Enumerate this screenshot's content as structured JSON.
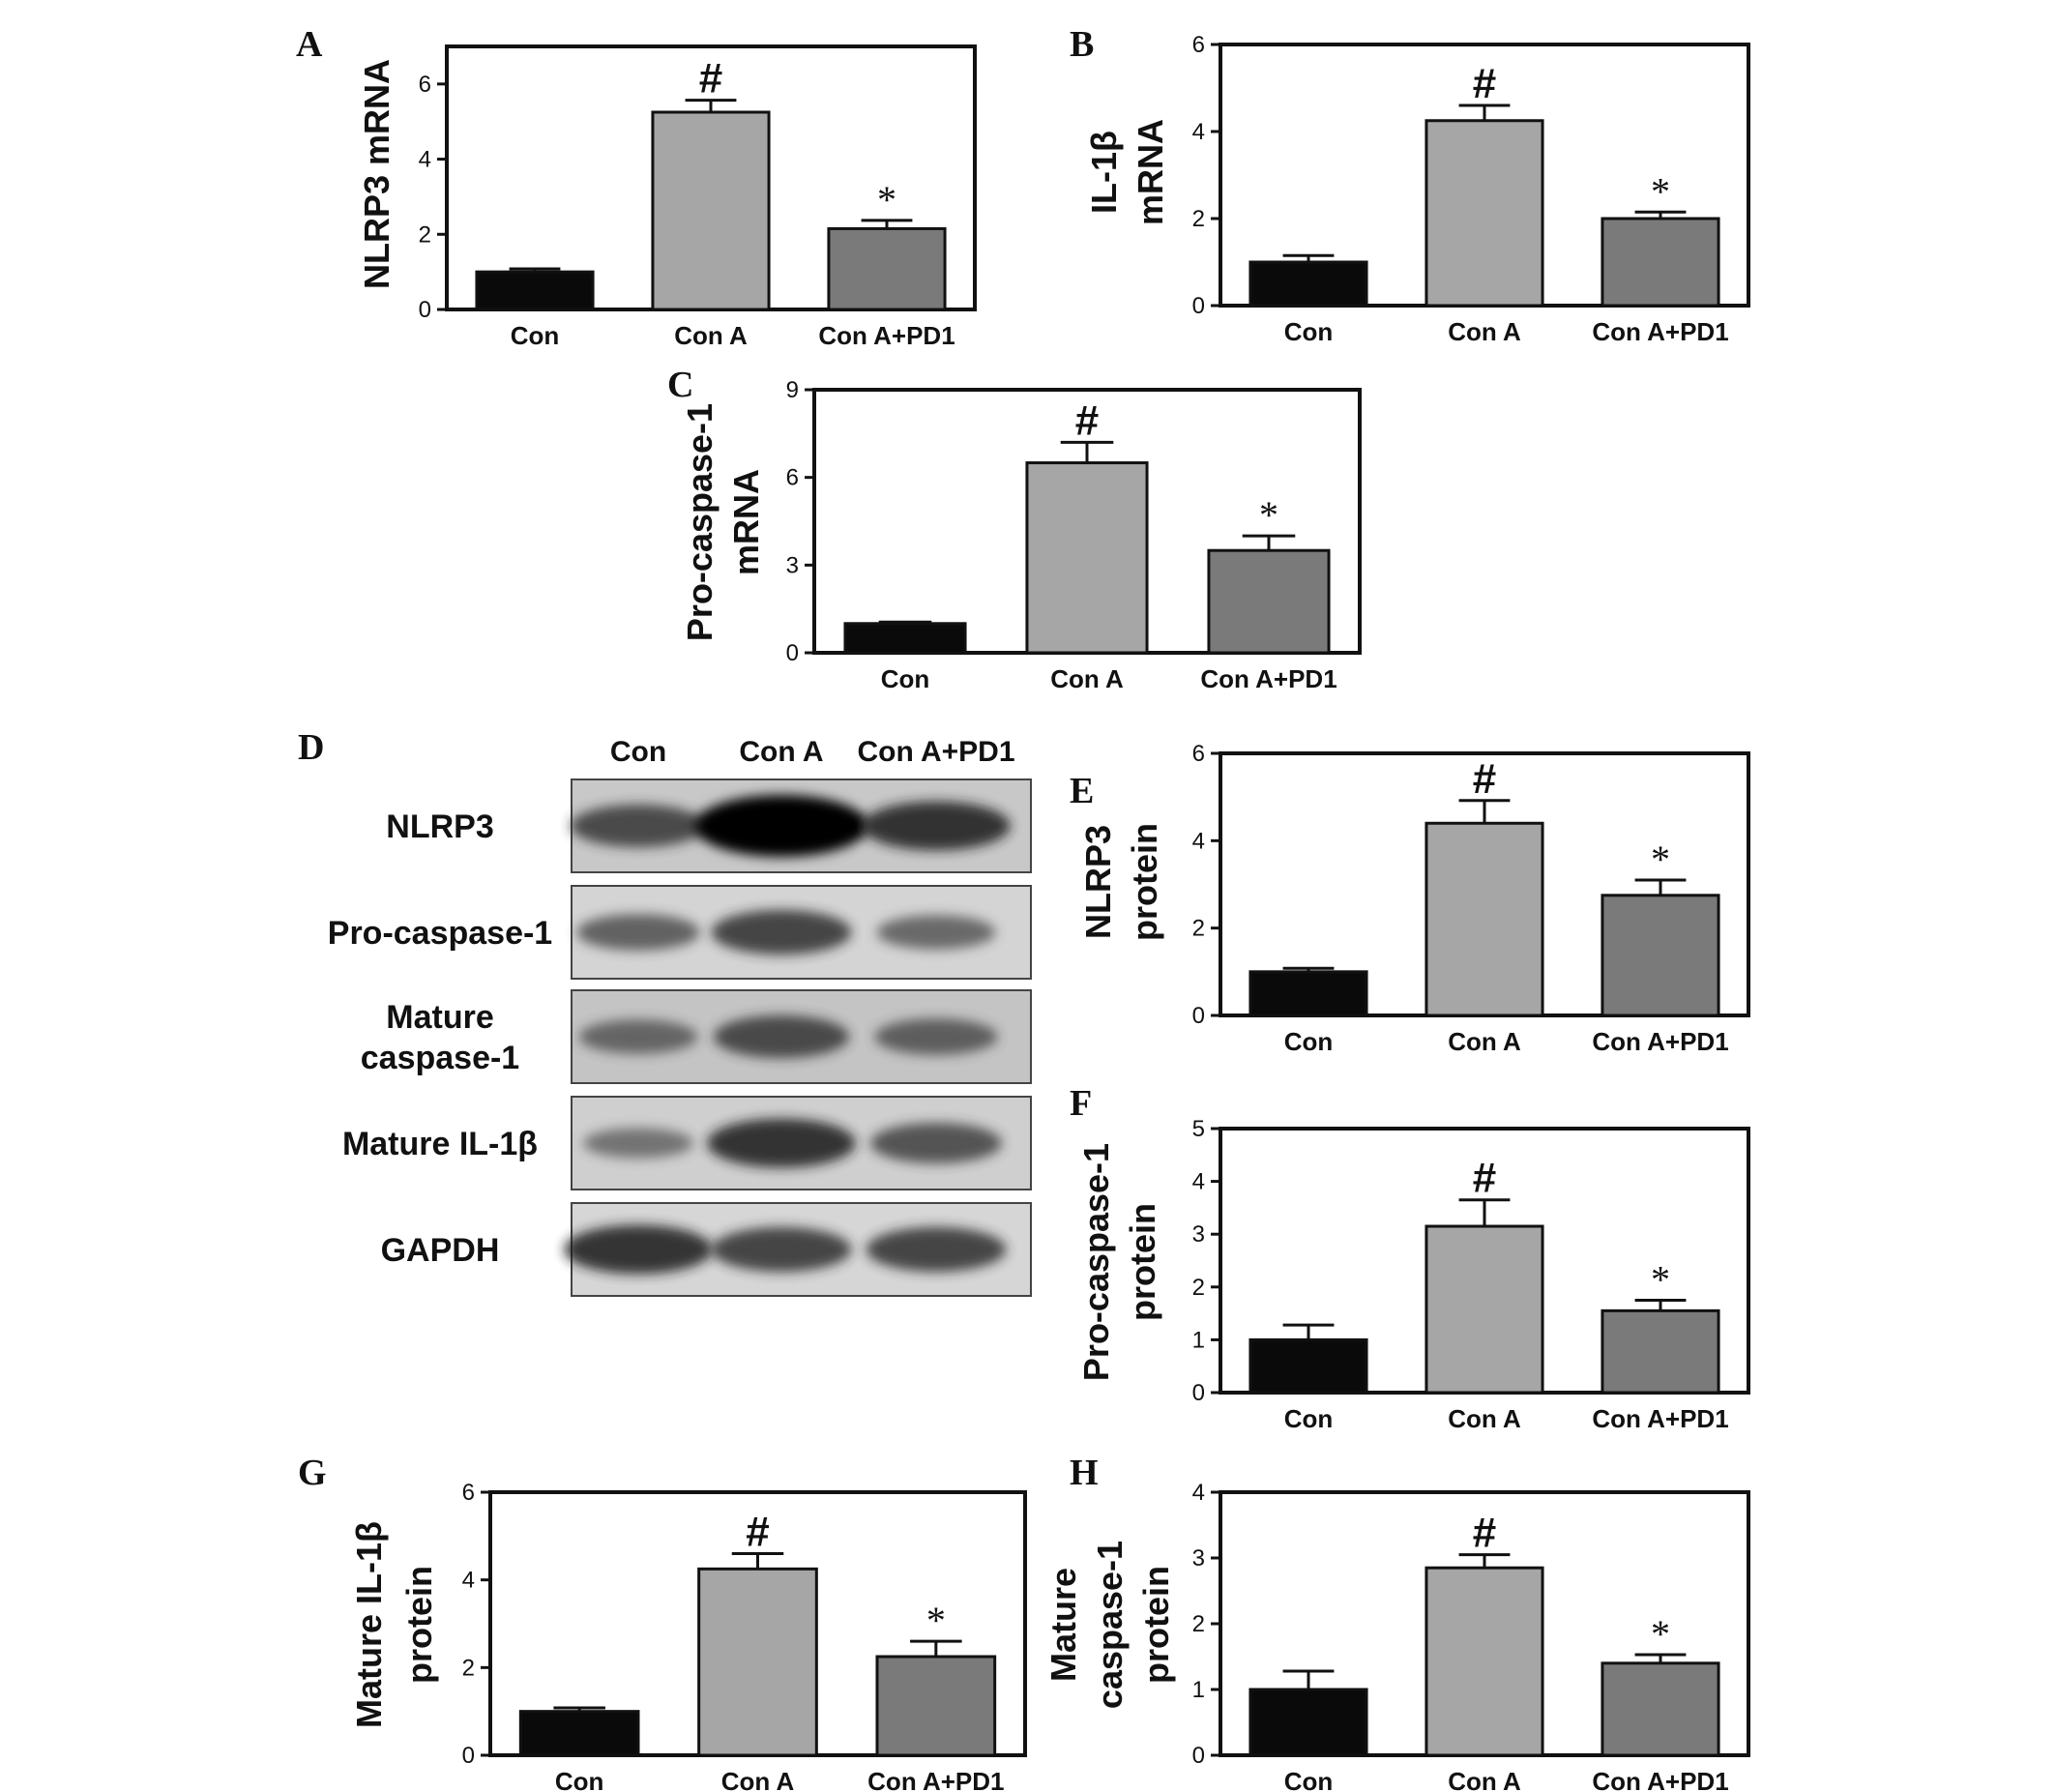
{
  "colors": {
    "con": "#0a0a0a",
    "conA": "#a6a6a6",
    "conAPD1": "#7a7a7a",
    "axis": "#111111"
  },
  "chart_data": [
    {
      "id": "A",
      "type": "bar",
      "panel_label": "A",
      "ylabel_lines": [
        "NLRP3 mRNA"
      ],
      "categories": [
        "Con",
        "Con A",
        "Con A+PD1"
      ],
      "values": [
        1.0,
        5.25,
        2.15
      ],
      "errors": [
        0.08,
        0.32,
        0.22
      ],
      "significance": [
        "",
        "#",
        "*"
      ],
      "ylim": [
        0,
        7
      ],
      "yticks": [
        0,
        2,
        4,
        6
      ],
      "ytick_labels": [
        "0",
        "2",
        "4",
        "6"
      ]
    },
    {
      "id": "B",
      "type": "bar",
      "panel_label": "B",
      "ylabel_lines": [
        "IL-1β",
        "mRNA"
      ],
      "categories": [
        "Con",
        "Con A",
        "Con A+PD1"
      ],
      "values": [
        1.0,
        4.25,
        2.0
      ],
      "errors": [
        0.15,
        0.35,
        0.15
      ],
      "significance": [
        "",
        "#",
        "*"
      ],
      "ylim": [
        0,
        6
      ],
      "yticks": [
        0,
        2,
        4,
        6
      ],
      "ytick_labels": [
        "0",
        "2",
        "4",
        "6"
      ]
    },
    {
      "id": "C",
      "type": "bar",
      "panel_label": "C",
      "ylabel_lines": [
        "Pro-caspase-1",
        "mRNA"
      ],
      "categories": [
        "Con",
        "Con A",
        "Con A+PD1"
      ],
      "values": [
        1.0,
        6.5,
        3.5
      ],
      "errors": [
        0.05,
        0.7,
        0.5
      ],
      "significance": [
        "",
        "#",
        "*"
      ],
      "ylim": [
        0,
        9
      ],
      "yticks": [
        0,
        3,
        6,
        9
      ],
      "ytick_labels": [
        "0",
        "3",
        "6",
        "9"
      ]
    },
    {
      "id": "E",
      "type": "bar",
      "panel_label": "E",
      "ylabel_lines": [
        "NLRP3",
        "protein"
      ],
      "categories": [
        "Con",
        "Con A",
        "Con A+PD1"
      ],
      "values": [
        1.0,
        4.4,
        2.75
      ],
      "errors": [
        0.08,
        0.52,
        0.35
      ],
      "significance": [
        "",
        "#",
        "*"
      ],
      "ylim": [
        0,
        6
      ],
      "yticks": [
        0,
        2,
        4,
        6
      ],
      "ytick_labels": [
        "0",
        "2",
        "4",
        "6"
      ]
    },
    {
      "id": "F",
      "type": "bar",
      "panel_label": "F",
      "ylabel_lines": [
        "Pro-caspase-1",
        "protein"
      ],
      "categories": [
        "Con",
        "Con A",
        "Con A+PD1"
      ],
      "values": [
        1.0,
        3.15,
        1.55
      ],
      "errors": [
        0.28,
        0.5,
        0.2
      ],
      "significance": [
        "",
        "#",
        "*"
      ],
      "ylim": [
        0,
        5
      ],
      "yticks": [
        0,
        1,
        2,
        3,
        4,
        5
      ],
      "ytick_labels": [
        "0",
        "1",
        "2",
        "3",
        "4",
        "5"
      ]
    },
    {
      "id": "G",
      "type": "bar",
      "panel_label": "G",
      "ylabel_lines": [
        "Mature IL-1β",
        "protein"
      ],
      "categories": [
        "Con",
        "Con A",
        "Con A+PD1"
      ],
      "values": [
        1.0,
        4.25,
        2.25
      ],
      "errors": [
        0.08,
        0.35,
        0.35
      ],
      "significance": [
        "",
        "#",
        "*"
      ],
      "ylim": [
        0,
        6
      ],
      "yticks": [
        0,
        2,
        4,
        6
      ],
      "ytick_labels": [
        "0",
        "2",
        "4",
        "6"
      ]
    },
    {
      "id": "H",
      "type": "bar",
      "panel_label": "H",
      "ylabel_lines": [
        "Mature",
        "caspase-1",
        "protein"
      ],
      "categories": [
        "Con",
        "Con A",
        "Con A+PD1"
      ],
      "values": [
        1.0,
        2.85,
        1.4
      ],
      "errors": [
        0.28,
        0.2,
        0.13
      ],
      "significance": [
        "",
        "#",
        "*"
      ],
      "ylim": [
        0,
        4
      ],
      "yticks": [
        0,
        1,
        2,
        3,
        4
      ],
      "ytick_labels": [
        "0",
        "1",
        "2",
        "3",
        "4"
      ]
    }
  ],
  "blot": {
    "panel_label": "D",
    "lanes": [
      "Con",
      "Con A",
      "Con A+PD1"
    ],
    "rows": [
      {
        "label_lines": [
          "NLRP3"
        ],
        "bg": "#c8c8c8",
        "intensities": [
          0.55,
          1.0,
          0.7
        ]
      },
      {
        "label_lines": [
          "Pro-caspase-1"
        ],
        "bg": "#d4d4d4",
        "intensities": [
          0.4,
          0.6,
          0.35
        ]
      },
      {
        "label_lines": [
          "Mature",
          "caspase-1"
        ],
        "bg": "#c4c4c4",
        "intensities": [
          0.35,
          0.55,
          0.4
        ]
      },
      {
        "label_lines": [
          "Mature IL-1β"
        ],
        "bg": "#cfcfcf",
        "intensities": [
          0.25,
          0.7,
          0.5
        ]
      },
      {
        "label_lines": [
          "GAPDH"
        ],
        "bg": "#d6d6d6",
        "intensities": [
          0.7,
          0.6,
          0.6
        ]
      }
    ]
  }
}
